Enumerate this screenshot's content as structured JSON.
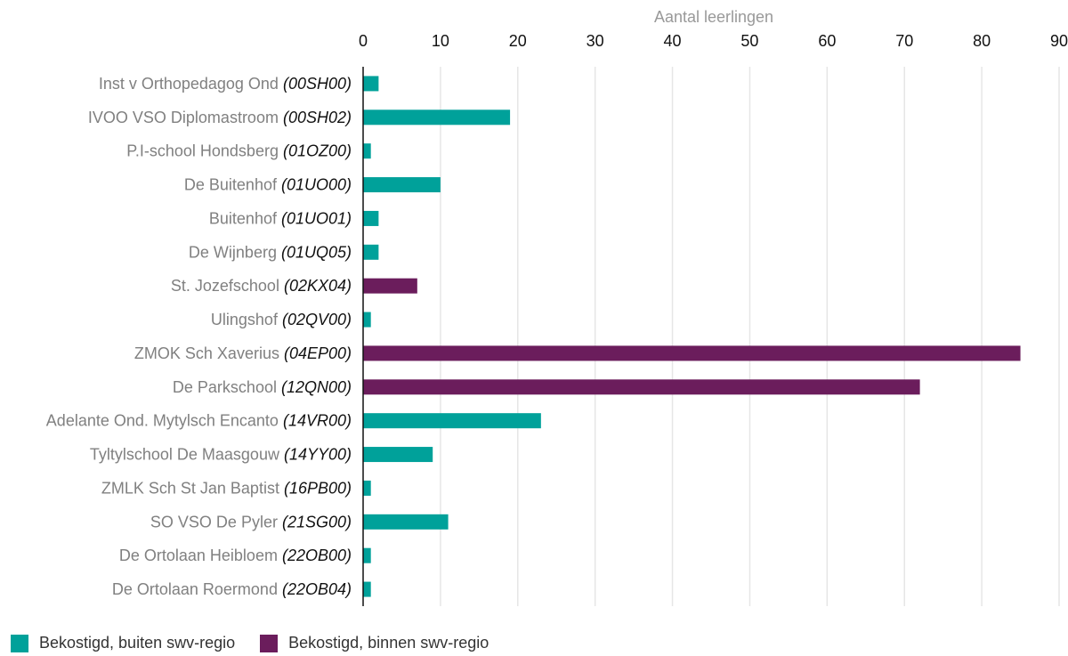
{
  "chart_data": {
    "type": "bar",
    "orientation": "horizontal",
    "xlabel": "Aantal leerlingen",
    "xlim": [
      0,
      90
    ],
    "xticks": [
      0,
      10,
      20,
      30,
      40,
      50,
      60,
      70,
      80,
      90
    ],
    "grid": true,
    "legend_position": "bottom-left",
    "colors": {
      "buiten": "#00A19A",
      "binnen": "#6B1D5C",
      "label_name": "#808080",
      "label_code": "#111111",
      "gridline": "#e6e6e6"
    },
    "legend": [
      {
        "key": "buiten",
        "label": "Bekostigd, buiten swv-regio"
      },
      {
        "key": "binnen",
        "label": "Bekostigd, binnen swv-regio"
      }
    ],
    "rows": [
      {
        "name": "Inst v Orthopedagog Ond",
        "code": "(00SH00)",
        "value": 2,
        "series": "buiten"
      },
      {
        "name": "IVOO VSO Diplomastroom",
        "code": "(00SH02)",
        "value": 19,
        "series": "buiten"
      },
      {
        "name": "P.I-school Hondsberg",
        "code": "(01OZ00)",
        "value": 1,
        "series": "buiten"
      },
      {
        "name": "De Buitenhof",
        "code": "(01UO00)",
        "value": 10,
        "series": "buiten"
      },
      {
        "name": "Buitenhof",
        "code": "(01UO01)",
        "value": 2,
        "series": "buiten"
      },
      {
        "name": "De Wijnberg",
        "code": "(01UQ05)",
        "value": 2,
        "series": "buiten"
      },
      {
        "name": "St. Jozefschool",
        "code": "(02KX04)",
        "value": 7,
        "series": "binnen"
      },
      {
        "name": "Ulingshof",
        "code": "(02QV00)",
        "value": 1,
        "series": "buiten"
      },
      {
        "name": "ZMOK Sch Xaverius",
        "code": "(04EP00)",
        "value": 85,
        "series": "binnen"
      },
      {
        "name": "De Parkschool",
        "code": "(12QN00)",
        "value": 72,
        "series": "binnen"
      },
      {
        "name": "Adelante Ond. Mytylsch Encanto",
        "code": "(14VR00)",
        "value": 23,
        "series": "buiten"
      },
      {
        "name": "Tyltylschool De Maasgouw",
        "code": "(14YY00)",
        "value": 9,
        "series": "buiten"
      },
      {
        "name": "ZMLK Sch St Jan Baptist",
        "code": "(16PB00)",
        "value": 1,
        "series": "buiten"
      },
      {
        "name": "SO VSO De Pyler",
        "code": "(21SG00)",
        "value": 11,
        "series": "buiten"
      },
      {
        "name": "De Ortolaan Heibloem",
        "code": "(22OB00)",
        "value": 1,
        "series": "buiten"
      },
      {
        "name": "De Ortolaan Roermond",
        "code": "(22OB04)",
        "value": 1,
        "series": "buiten"
      }
    ]
  }
}
